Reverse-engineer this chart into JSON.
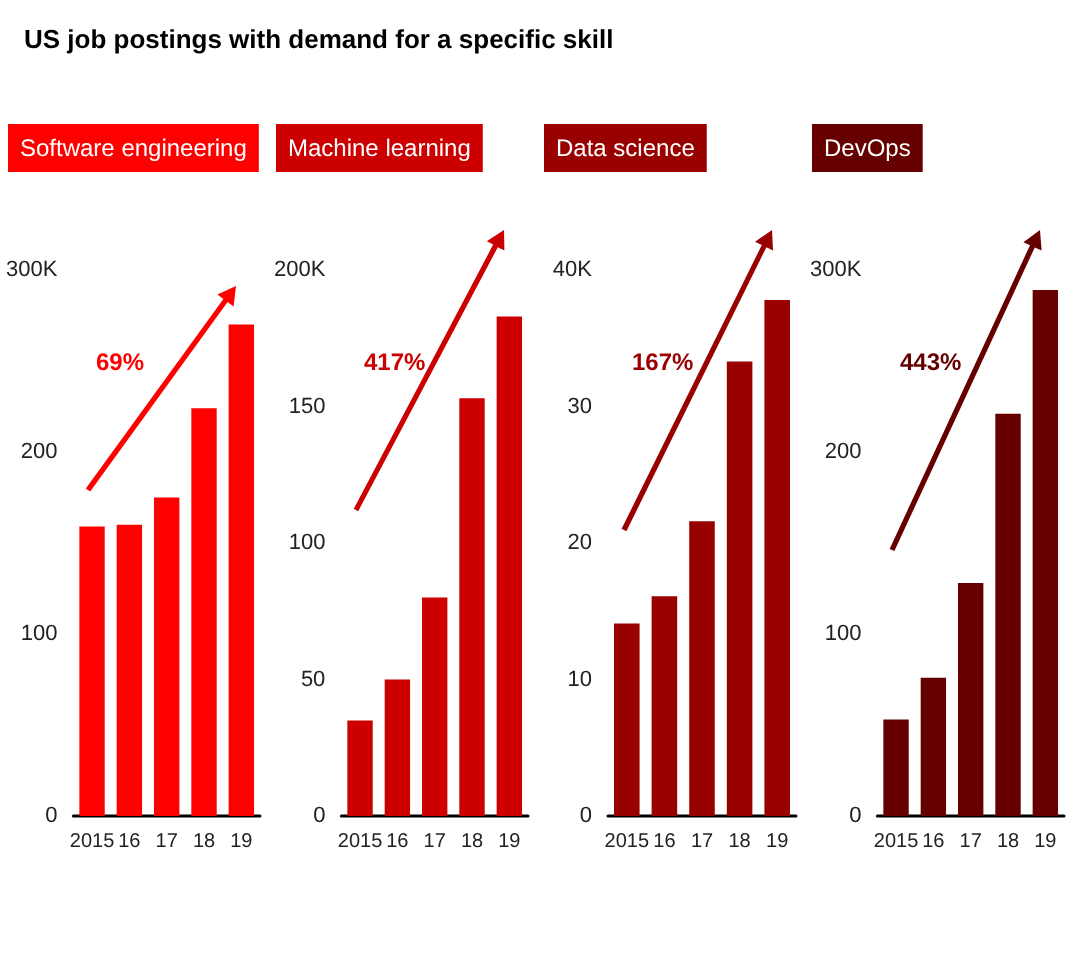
{
  "chart_data": [
    {
      "type": "bar",
      "title": "US job postings with demand for a specific skill",
      "subtitle": "Software engineering",
      "categories": [
        "2015",
        "16",
        "17",
        "18",
        "19"
      ],
      "values": [
        159,
        160,
        175,
        224,
        270
      ],
      "color": "#ff0000",
      "ylim": [
        0,
        300
      ],
      "yticks": [
        0,
        100,
        200,
        {
          "value": 300,
          "label": "300K"
        }
      ],
      "annotations": [
        "69%"
      ]
    },
    {
      "type": "bar",
      "subtitle": "Machine learning",
      "categories": [
        "2015",
        "16",
        "17",
        "18",
        "19"
      ],
      "values": [
        35,
        50,
        80,
        153,
        183
      ],
      "color": "#cc0000",
      "ylim": [
        0,
        200
      ],
      "yticks": [
        0,
        50,
        100,
        150,
        {
          "value": 200,
          "label": "200K"
        }
      ],
      "annotations": [
        "417%"
      ]
    },
    {
      "type": "bar",
      "subtitle": "Data science",
      "categories": [
        "2015",
        "16",
        "17",
        "18",
        "19"
      ],
      "values": [
        14.1,
        16.1,
        21.6,
        33.3,
        37.8
      ],
      "color": "#990000",
      "ylim": [
        0,
        40
      ],
      "yticks": [
        0,
        10,
        20,
        30,
        {
          "value": 40,
          "label": "40K"
        }
      ],
      "annotations": [
        "167%"
      ]
    },
    {
      "type": "bar",
      "subtitle": "DevOps",
      "categories": [
        "2015",
        "16",
        "17",
        "18",
        "19"
      ],
      "values": [
        53,
        76,
        128,
        221,
        289
      ],
      "color": "#660000",
      "ylim": [
        0,
        300
      ],
      "yticks": [
        0,
        100,
        200,
        {
          "value": 300,
          "label": "300K"
        }
      ],
      "annotations": [
        "443%"
      ]
    }
  ]
}
